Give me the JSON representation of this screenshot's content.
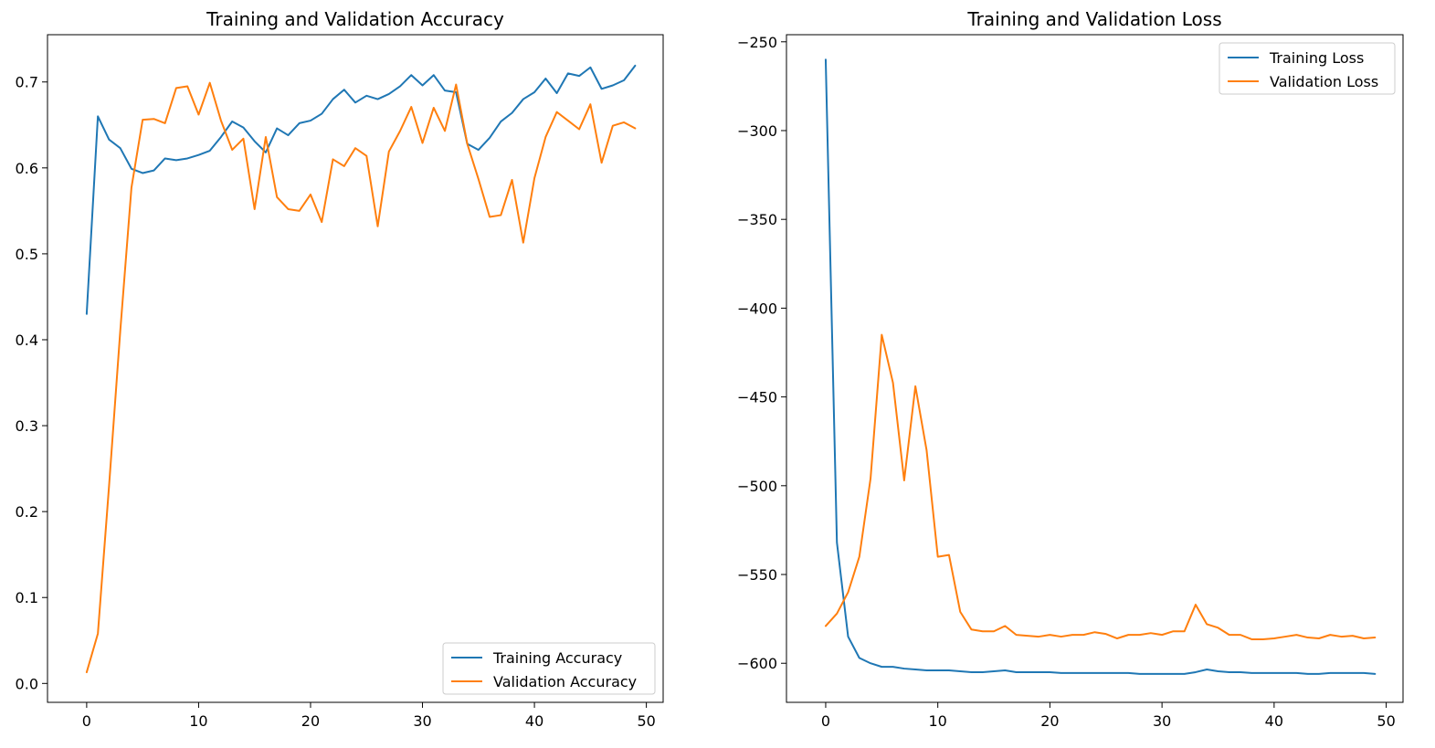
{
  "chart_data": [
    {
      "type": "line",
      "title": "Training and Validation Accuracy",
      "xlabel": "",
      "ylabel": "",
      "xlim": [
        -3.5,
        51.5
      ],
      "ylim": [
        -0.022,
        0.755
      ],
      "xticks": [
        0,
        10,
        20,
        30,
        40,
        50
      ],
      "yticks": [
        0.0,
        0.1,
        0.2,
        0.3,
        0.4,
        0.5,
        0.6,
        0.7
      ],
      "ytick_labels": [
        "0.0",
        "0.1",
        "0.2",
        "0.3",
        "0.4",
        "0.5",
        "0.6",
        "0.7"
      ],
      "grid": false,
      "legend_placement": "lower right",
      "x": [
        0,
        1,
        2,
        3,
        4,
        5,
        6,
        7,
        8,
        9,
        10,
        11,
        12,
        13,
        14,
        15,
        16,
        17,
        18,
        19,
        20,
        21,
        22,
        23,
        24,
        25,
        26,
        27,
        28,
        29,
        30,
        31,
        32,
        33,
        34,
        35,
        36,
        37,
        38,
        39,
        40,
        41,
        42,
        43,
        44,
        45,
        46,
        47,
        48,
        49
      ],
      "series": [
        {
          "name": "Training Accuracy",
          "color": "#1f77b4",
          "values": [
            0.43,
            0.66,
            0.633,
            0.623,
            0.599,
            0.594,
            0.597,
            0.611,
            0.609,
            0.611,
            0.615,
            0.62,
            0.636,
            0.654,
            0.647,
            0.631,
            0.618,
            0.646,
            0.638,
            0.652,
            0.655,
            0.663,
            0.68,
            0.691,
            0.676,
            0.684,
            0.68,
            0.686,
            0.695,
            0.708,
            0.696,
            0.708,
            0.69,
            0.688,
            0.628,
            0.621,
            0.635,
            0.654,
            0.664,
            0.68,
            0.688,
            0.704,
            0.687,
            0.71,
            0.707,
            0.717,
            0.692,
            0.696,
            0.702,
            0.719
          ]
        },
        {
          "name": "Validation Accuracy",
          "color": "#ff7f0e",
          "values": [
            0.013,
            0.058,
            0.23,
            0.41,
            0.577,
            0.656,
            0.657,
            0.652,
            0.693,
            0.695,
            0.662,
            0.699,
            0.655,
            0.621,
            0.634,
            0.552,
            0.636,
            0.566,
            0.552,
            0.55,
            0.569,
            0.537,
            0.61,
            0.602,
            0.623,
            0.614,
            0.532,
            0.619,
            0.643,
            0.671,
            0.629,
            0.67,
            0.643,
            0.697,
            0.628,
            0.587,
            0.543,
            0.545,
            0.586,
            0.513,
            0.588,
            0.636,
            0.665,
            0.655,
            0.645,
            0.674,
            0.606,
            0.649,
            0.653,
            0.646
          ]
        }
      ]
    },
    {
      "type": "line",
      "title": "Training and Validation Loss",
      "xlabel": "",
      "ylabel": "",
      "xlim": [
        -3.5,
        51.5
      ],
      "ylim": [
        -622,
        -246
      ],
      "xticks": [
        0,
        10,
        20,
        30,
        40,
        50
      ],
      "yticks": [
        -250,
        -300,
        -350,
        -400,
        -450,
        -500,
        -550,
        -600
      ],
      "ytick_labels": [
        "−250",
        "−300",
        "−350",
        "−400",
        "−450",
        "−500",
        "−550",
        "−600"
      ],
      "grid": false,
      "legend_placement": "upper right",
      "x": [
        0,
        1,
        2,
        3,
        4,
        5,
        6,
        7,
        8,
        9,
        10,
        11,
        12,
        13,
        14,
        15,
        16,
        17,
        18,
        19,
        20,
        21,
        22,
        23,
        24,
        25,
        26,
        27,
        28,
        29,
        30,
        31,
        32,
        33,
        34,
        35,
        36,
        37,
        38,
        39,
        40,
        41,
        42,
        43,
        44,
        45,
        46,
        47,
        48,
        49
      ],
      "series": [
        {
          "name": "Training Loss",
          "color": "#1f77b4",
          "values": [
            -260,
            -532,
            -585,
            -597,
            -600,
            -602,
            -602,
            -603,
            -603.5,
            -604,
            -604,
            -604,
            -604.5,
            -605,
            -605,
            -604.5,
            -604,
            -605,
            -605,
            -605,
            -605,
            -605.5,
            -605.5,
            -605.5,
            -605.5,
            -605.5,
            -605.5,
            -605.5,
            -606,
            -606,
            -606,
            -606,
            -606,
            -605,
            -603.5,
            -604.5,
            -605,
            -605,
            -605.5,
            -605.5,
            -605.5,
            -605.5,
            -605.5,
            -606,
            -606,
            -605.5,
            -605.5,
            -605.5,
            -605.5,
            -606
          ]
        },
        {
          "name": "Validation Loss",
          "color": "#ff7f0e",
          "values": [
            -579,
            -572,
            -560,
            -540,
            -496,
            -415,
            -442,
            -497,
            -444,
            -480,
            -540,
            -539,
            -571,
            -581,
            -582,
            -582,
            -579,
            -584,
            -584.5,
            -585,
            -584,
            -585,
            -584,
            -584,
            -582.5,
            -583.5,
            -586,
            -584,
            -584,
            -583,
            -584,
            -582,
            -582,
            -567,
            -578,
            -580,
            -584,
            -584,
            -586.5,
            -586.5,
            -586,
            -585,
            -584,
            -585.5,
            -586,
            -584,
            -585,
            -584.5,
            -586,
            -585.5
          ]
        }
      ]
    }
  ]
}
